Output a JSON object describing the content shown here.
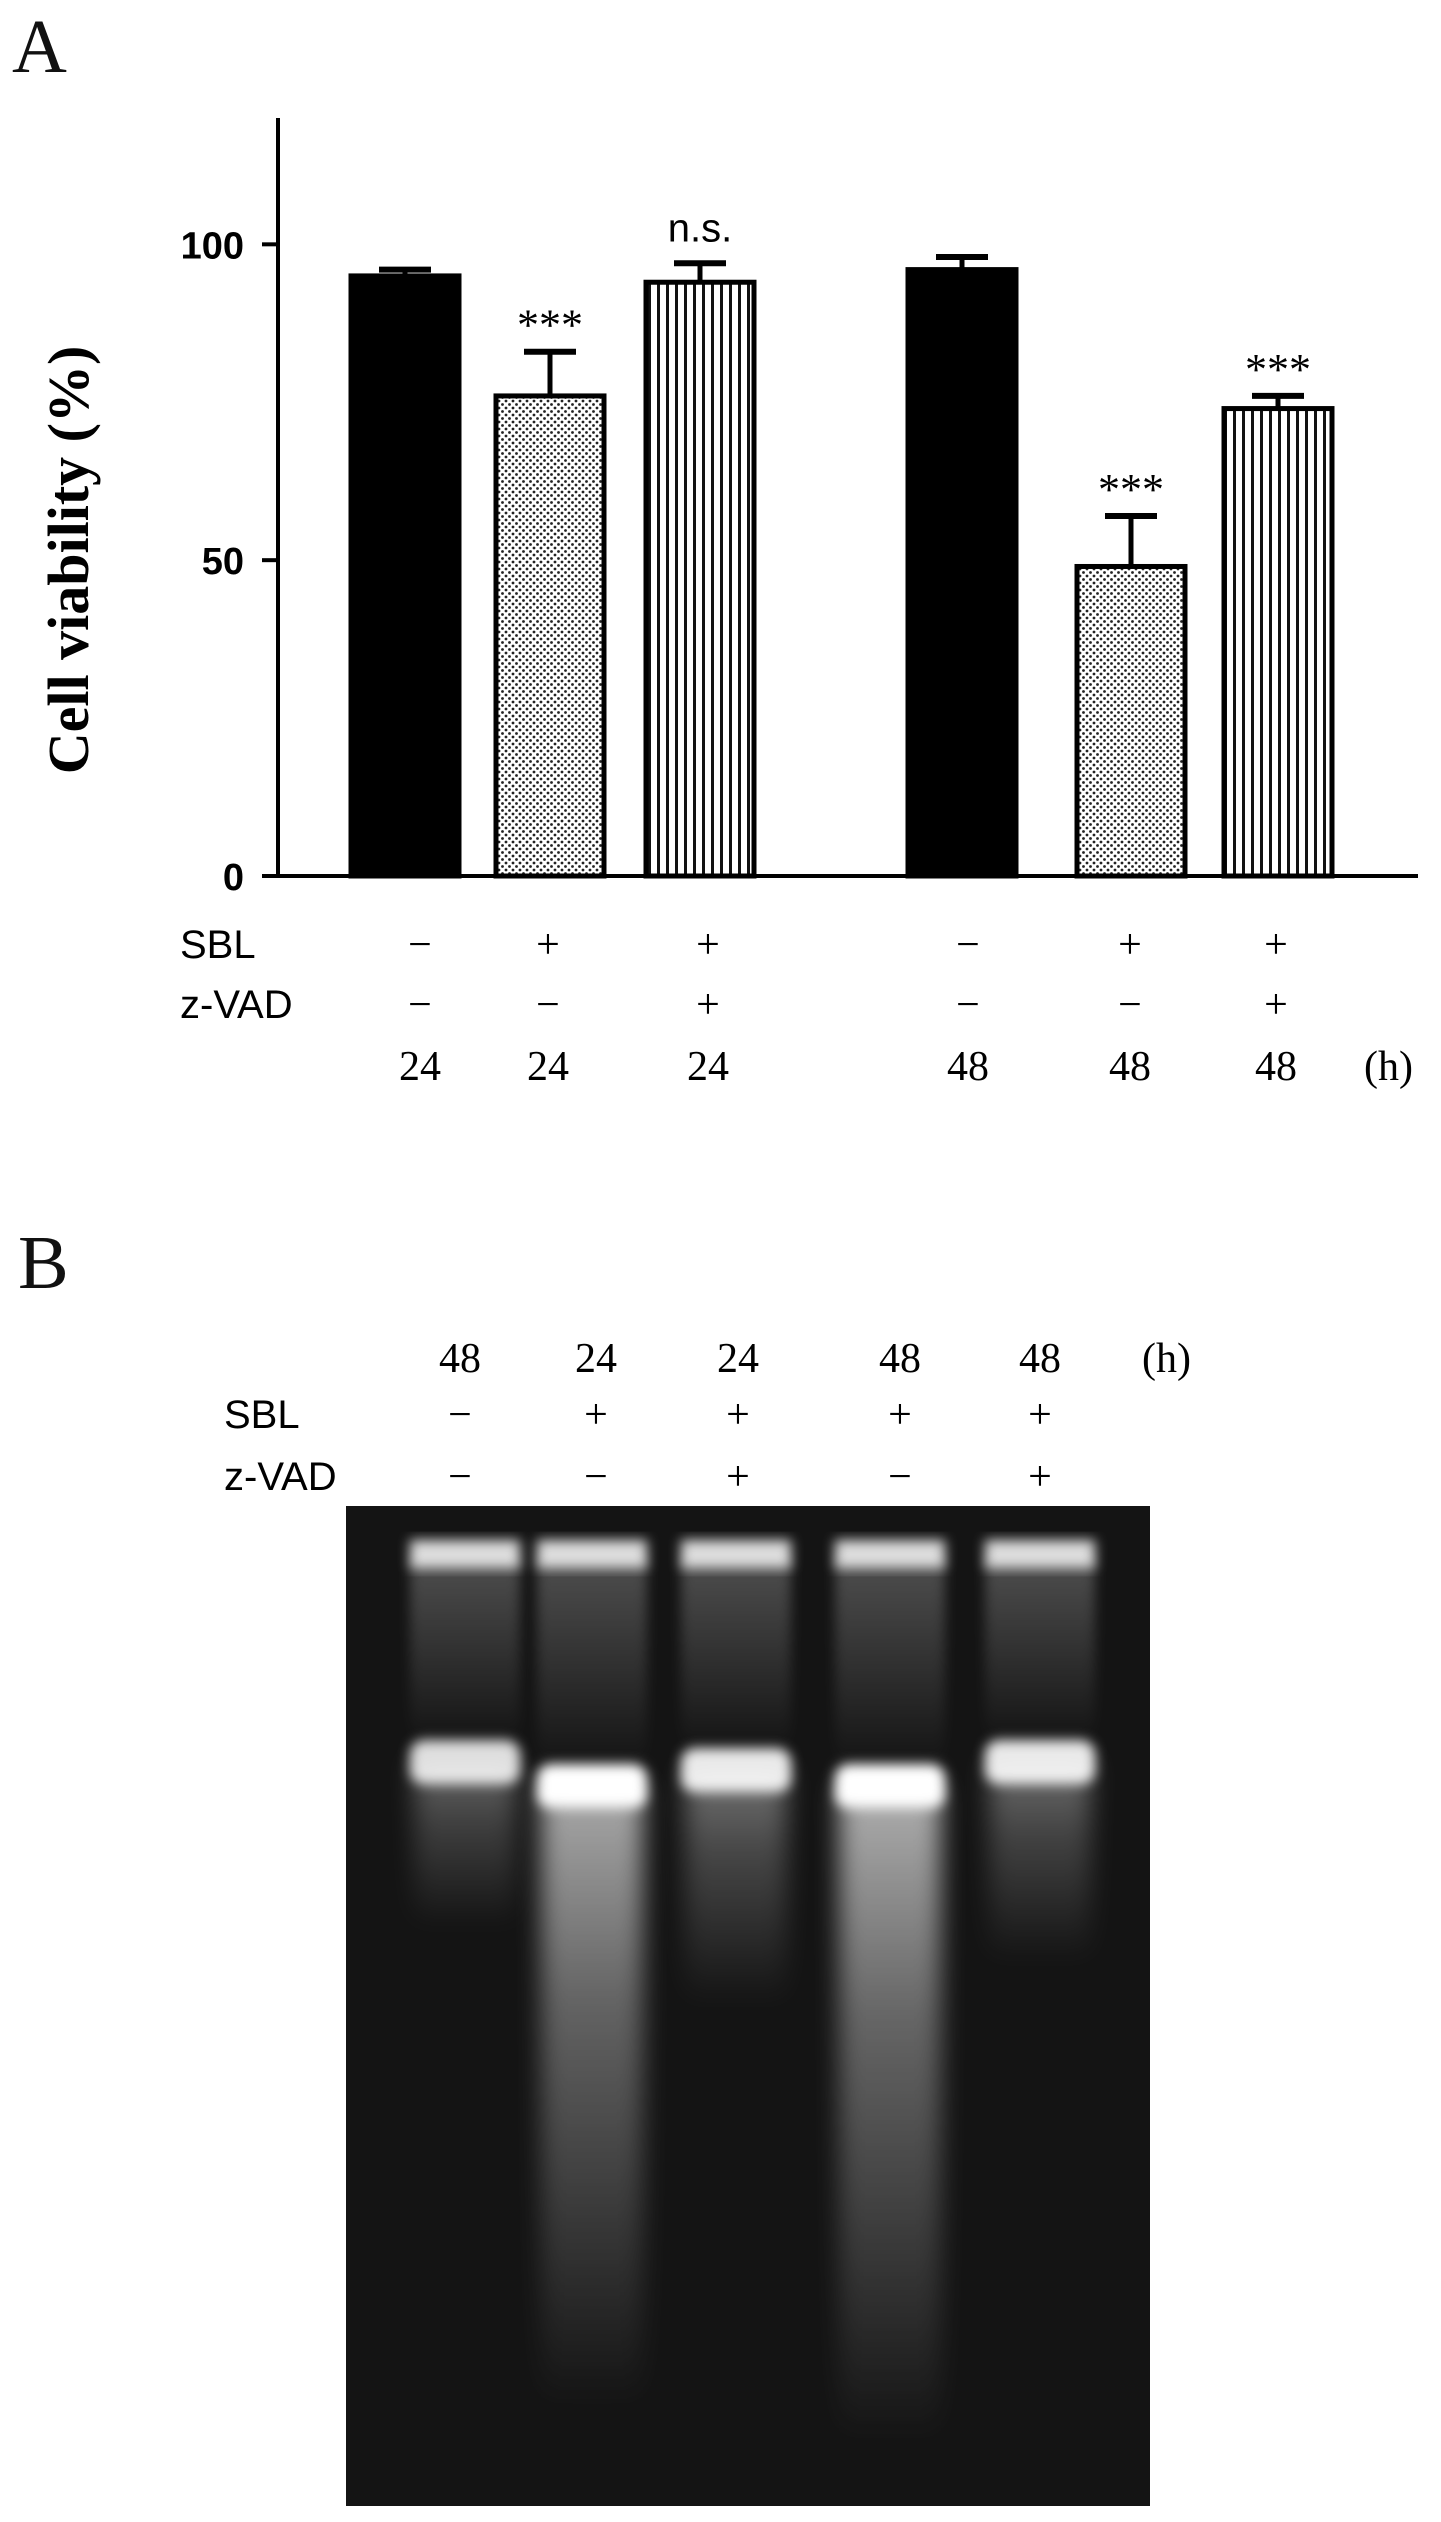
{
  "panel_a": {
    "letter": "A",
    "chart_data": {
      "type": "bar",
      "ylabel": "Cell viability (%)",
      "ylim": [
        0,
        120
      ],
      "yticks": [
        0,
        50,
        100
      ],
      "grid": false,
      "bars": [
        {
          "value": 95,
          "error": 1,
          "fill": "solid",
          "annotation": ""
        },
        {
          "value": 76,
          "error": 7,
          "fill": "dots",
          "annotation": "***"
        },
        {
          "value": 94,
          "error": 3,
          "fill": "vlines",
          "annotation": "n.s."
        },
        {
          "value": 96,
          "error": 2,
          "fill": "solid",
          "annotation": ""
        },
        {
          "value": 49,
          "error": 8,
          "fill": "dots",
          "annotation": "***"
        },
        {
          "value": 74,
          "error": 2,
          "fill": "vlines",
          "annotation": "***"
        }
      ],
      "condition_rows": [
        {
          "label": "SBL",
          "values": [
            "−",
            "+",
            "+",
            "−",
            "+",
            "+"
          ]
        },
        {
          "label": "z-VAD",
          "values": [
            "−",
            "−",
            "+",
            "−",
            "−",
            "+"
          ]
        },
        {
          "label": "",
          "values": [
            "24",
            "24",
            "24",
            "48",
            "48",
            "48"
          ],
          "unit": "(h)"
        }
      ]
    }
  },
  "panel_b": {
    "letter": "B",
    "header_rows": [
      {
        "label": "",
        "values": [
          "48",
          "24",
          "24",
          "48",
          "48"
        ],
        "unit": "(h)"
      },
      {
        "label": "SBL",
        "values": [
          "−",
          "+",
          "+",
          "+",
          "+"
        ]
      },
      {
        "label": "z-VAD",
        "values": [
          "−",
          "−",
          "+",
          "−",
          "+"
        ]
      }
    ],
    "lanes": [
      {
        "band_strength": 0.85,
        "smear": 0.15
      },
      {
        "band_strength": 1.0,
        "smear": 0.8
      },
      {
        "band_strength": 0.9,
        "smear": 0.25
      },
      {
        "band_strength": 1.0,
        "smear": 0.85
      },
      {
        "band_strength": 0.9,
        "smear": 0.2
      }
    ]
  }
}
